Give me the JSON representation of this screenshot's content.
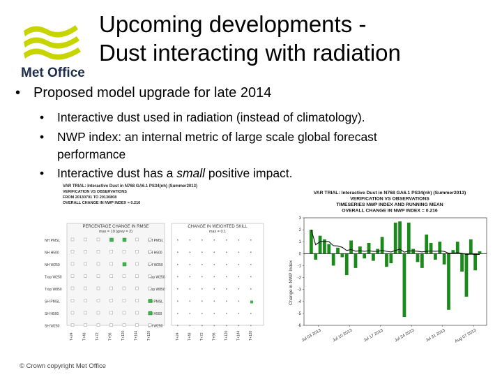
{
  "slide": {
    "title_line1": "Upcoming developments -",
    "title_line2": "Dust interacting with radiation",
    "logo_text": "Met Office",
    "bullet1": "Proposed model upgrade for late 2014",
    "sub1": "Interactive dust used in radiation (instead of climatology).",
    "sub2_line1": "NWP index: an internal metric of large scale global forecast",
    "sub2_line2": "performance",
    "sub3_pre": "Interactive dust has a ",
    "sub3_em": "small",
    "sub3_post": " positive impact.",
    "bullet_char": "•",
    "copyright": "© Crown copyright   Met Office"
  },
  "left_chart": {
    "header_lines": [
      "VAR TRIAL: Interactive Dust in N768 GA6.1 PS34(nh) (Summer2013)",
      "VERIFICATION VS OBSERVATIONS",
      "FROM 20130701 TO 20130808",
      "OVERALL CHANGE IN NWP INDEX = 0.216"
    ],
    "panel_a_title": "PERCENTAGE CHANGE IN RMSE",
    "panel_a_sub": "max = 10 (grey = 2)",
    "panel_b_title": "CHANGE IN WEIGHTED SKILL",
    "panel_b_sub": "max = 0.1",
    "row_labels": [
      "NH PMSL",
      "NH H500",
      "NH W250",
      "Trop W250",
      "Trop W850",
      "SH PMSL",
      "SH H500",
      "SH W250"
    ],
    "col_labels": [
      "T+24",
      "T+48",
      "T+72",
      "T+96",
      "T+120",
      "T+144",
      "T+120"
    ]
  },
  "right_chart": {
    "title_lines": [
      "VAR TRIAL: Interactive Dust in N768 GA6.1 PS34(nh) (Summer2013)",
      "VERIFICATION VS OBSERVATIONS",
      "TIMESERIES NWP INDEX AND RUNNING MEAN",
      "OVERALL CHANGE IN NWP INDEX = 0.216"
    ],
    "ylabel": "Change in NWP Index",
    "x_tick_labels": [
      "Jul 03 2013",
      "Jul 10 2013",
      "Jul 17 2013",
      "Jul 24 2013",
      "Jul 31 2013",
      "Aug 07 2013"
    ]
  },
  "chart_data": {
    "type": "bar",
    "title": "VAR TRIAL: Interactive Dust in N768 GA6.1 PS34(nh) (Summer2013) VERIFICATION VS OBSERVATIONS TIMESERIES NWP INDEX AND RUNNING MEAN OVERALL CHANGE IN NWP INDEX = 0.216",
    "xlabel": "",
    "ylabel": "Change in NWP Index",
    "ylim": [
      -6,
      3
    ],
    "yticks": [
      3,
      2,
      1,
      0,
      -1,
      -2,
      -3,
      -4,
      -5,
      -6
    ],
    "x": [
      "2013-07-01",
      "2013-07-02",
      "2013-07-03",
      "2013-07-04",
      "2013-07-05",
      "2013-07-06",
      "2013-07-07",
      "2013-07-08",
      "2013-07-09",
      "2013-07-10",
      "2013-07-11",
      "2013-07-12",
      "2013-07-13",
      "2013-07-14",
      "2013-07-15",
      "2013-07-16",
      "2013-07-17",
      "2013-07-18",
      "2013-07-19",
      "2013-07-20",
      "2013-07-21",
      "2013-07-22",
      "2013-07-23",
      "2013-07-24",
      "2013-07-25",
      "2013-07-26",
      "2013-07-27",
      "2013-07-28",
      "2013-07-29",
      "2013-07-30",
      "2013-07-31",
      "2013-08-01",
      "2013-08-02",
      "2013-08-03",
      "2013-08-04",
      "2013-08-05",
      "2013-08-06",
      "2013-08-07",
      "2013-08-08"
    ],
    "series": [
      {
        "values": [
          2.0,
          -0.5,
          1.5,
          1.2,
          0.8,
          -1.0,
          0.5,
          -0.3,
          -1.8,
          1.1,
          -1.2,
          0.6,
          -0.4,
          0.9,
          -0.6,
          0.4,
          1.4,
          -1.1,
          -0.8,
          2.6,
          2.7,
          -5.3,
          2.6,
          0.4,
          -0.7,
          -1.2,
          1.6,
          0.9,
          -0.5,
          1.0,
          -0.9,
          -4.7,
          0.3,
          1.0,
          -1.5,
          -3.6,
          1.2,
          -1.4,
          0.2
        ]
      }
    ],
    "bar_color": "#1a8a1a",
    "grid": false
  }
}
